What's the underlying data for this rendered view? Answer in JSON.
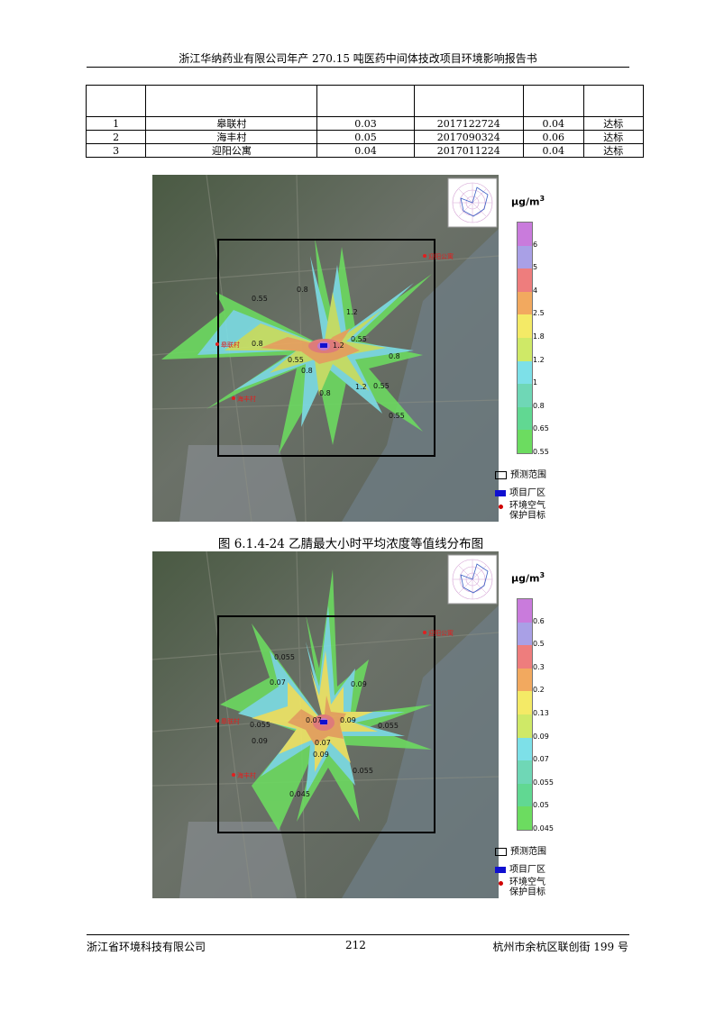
{
  "header": {
    "title": "浙江华纳药业有限公司年产 270.15 吨医药中间体技改项目环境影响报告书"
  },
  "table": {
    "header_cells": [
      "",
      "",
      "",
      "",
      "",
      ""
    ],
    "rows": [
      [
        "1",
        "皋联村",
        "0.03",
        "2017122724",
        "0.04",
        "达标"
      ],
      [
        "2",
        "海丰村",
        "0.05",
        "2017090324",
        "0.06",
        "达标"
      ],
      [
        "3",
        "迎阳公寓",
        "0.04",
        "2017011224",
        "0.04",
        "达标"
      ]
    ]
  },
  "figure1": {
    "unit": "μg/m",
    "unit_sup": "3",
    "legend_ticks": [
      "6",
      "5",
      "4",
      "2.5",
      "1.8",
      "1.2",
      "1",
      "0.8",
      "0.65",
      "0.55"
    ],
    "legend_colors": [
      "#c97bdc",
      "#a9a0e6",
      "#ee7d7d",
      "#f2a95f",
      "#f4ea66",
      "#cfe967",
      "#7de0e8",
      "#6fd7b6",
      "#61d892",
      "#6cdc60"
    ],
    "contour_labels": [
      "0.55",
      "0.8",
      "1.2",
      "0.8",
      "0.55",
      "0.8",
      "1.2",
      "0.55",
      "0.8",
      "1.2",
      "0.55",
      "0.8",
      "0.55"
    ],
    "site_labels": [
      "迎阳公寓",
      "皋联村",
      "海丰村"
    ],
    "caption": "图 6.1.4-24  乙腈最大小时平均浓度等值线分布图"
  },
  "figure2": {
    "unit": "μg/m",
    "unit_sup": "3",
    "legend_ticks": [
      "0.6",
      "0.5",
      "0.3",
      "0.2",
      "0.13",
      "0.09",
      "0.07",
      "0.055",
      "0.05",
      "0.045"
    ],
    "legend_colors": [
      "#c97bdc",
      "#a9a0e6",
      "#ee7d7d",
      "#f2a95f",
      "#f4ea66",
      "#cfe967",
      "#7de0e8",
      "#6fd7b6",
      "#61d892",
      "#6cdc60"
    ],
    "contour_labels": [
      "0.055",
      "0.07",
      "0.09",
      "0.055",
      "0.09",
      "0.07",
      "0.055",
      "0.09",
      "0.07",
      "0.09",
      "0.055",
      "0.045"
    ],
    "site_labels": [
      "迎阳公寓",
      "皋联村",
      "海丰村"
    ]
  },
  "legend_keys": {
    "range": "预测范围",
    "plant": "项目厂区",
    "target_line1": "环境空气",
    "target_line2": "保护目标"
  },
  "footer": {
    "left": "浙江省环境科技有限公司",
    "page": "212",
    "right": "杭州市余杭区联创街 199 号"
  }
}
